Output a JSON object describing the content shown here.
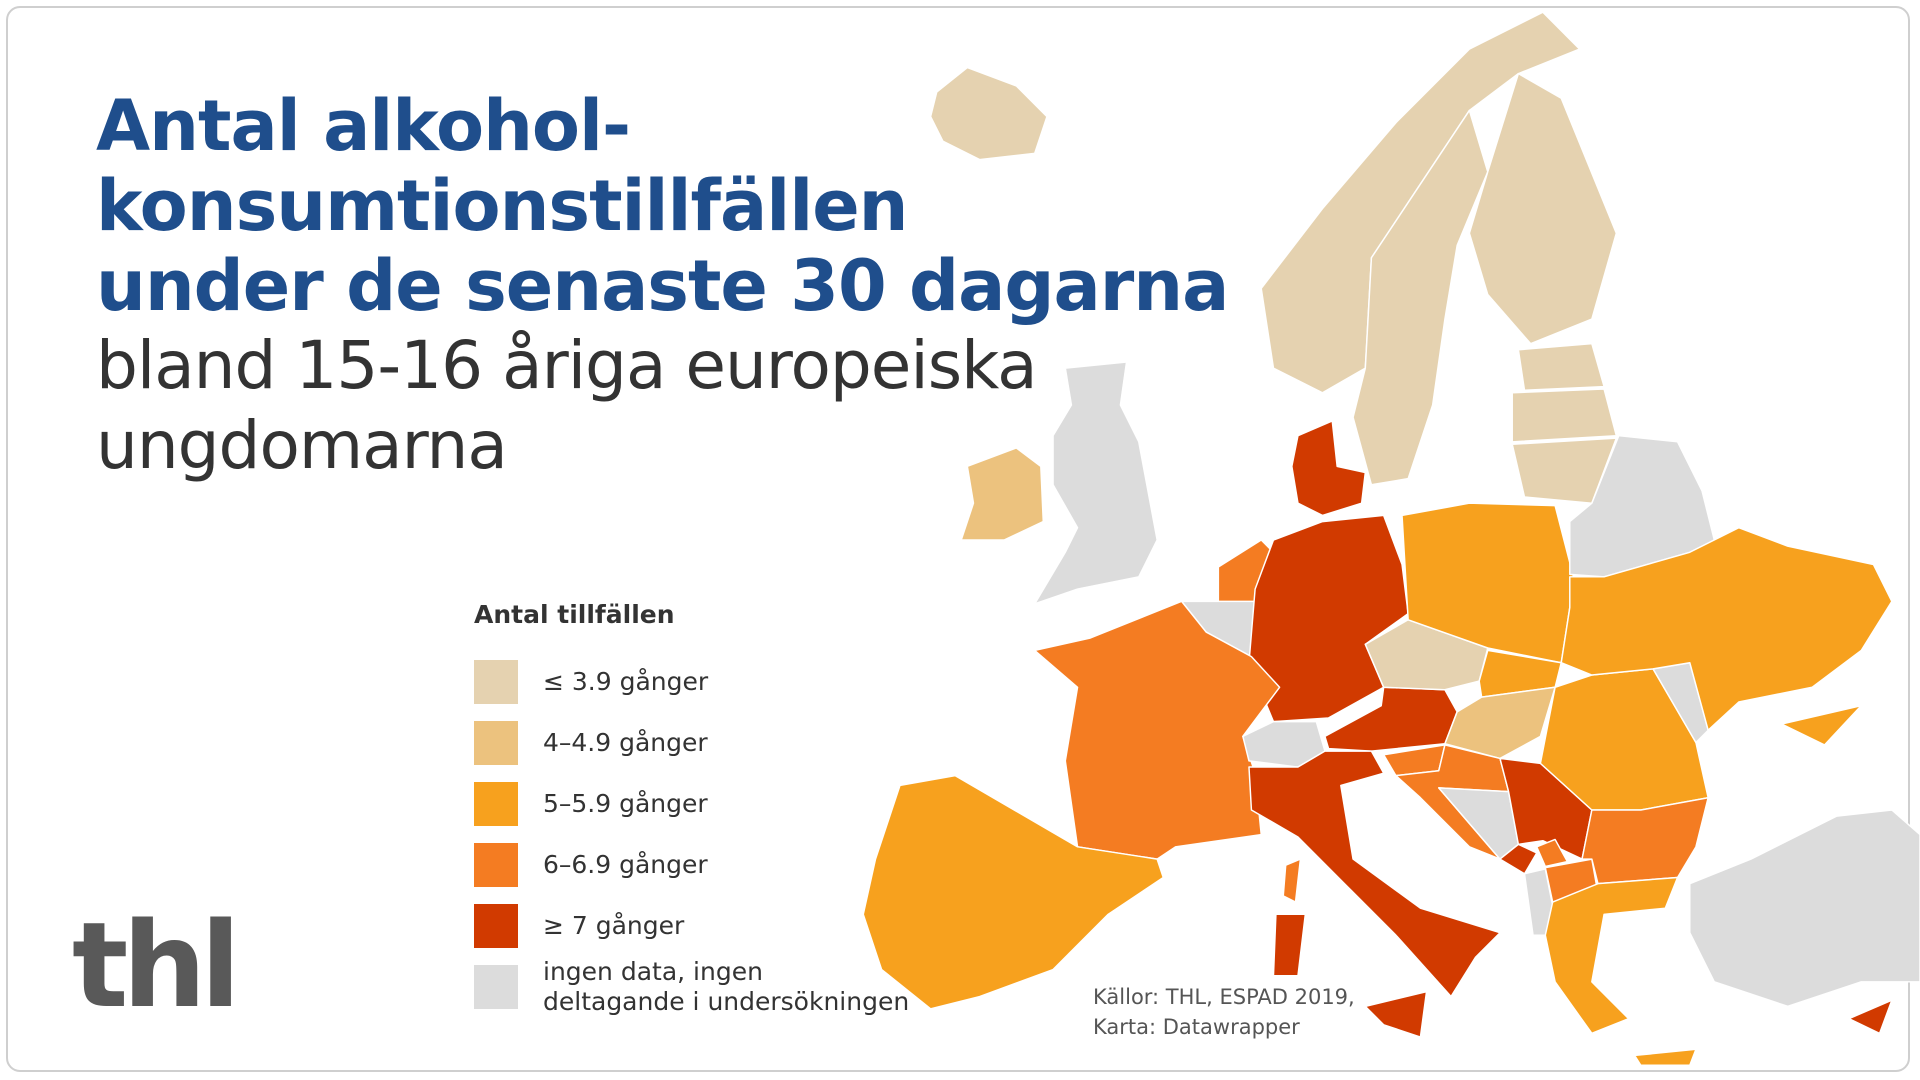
{
  "title": {
    "line1": "Antal alkohol-",
    "line2": "konsumtionstillfällen",
    "line3": "under de senaste 30 dagarna"
  },
  "subtitle": {
    "line1": "bland 15-16 åriga europeiska",
    "line2": "ungdomarna"
  },
  "legend": {
    "title": "Antal tillfällen",
    "items": [
      {
        "label": "≤ 3.9 gånger",
        "color": "#e5d2b0"
      },
      {
        "label": "4–4.9 gånger",
        "color": "#ecc27e"
      },
      {
        "label": "5–5.9 gånger",
        "color": "#f7a11e"
      },
      {
        "label": "6–6.9 gånger",
        "color": "#f47c22"
      },
      {
        "label": "≥ 7 gånger",
        "color": "#d13a00"
      },
      {
        "label_line1": "ingen data, ingen",
        "label_line2": "deltagande i undersökningen",
        "color": "#dcdcdc"
      }
    ]
  },
  "map_data": {
    "type": "choropleth",
    "categories": [
      "≤ 3.9",
      "4–4.9",
      "5–5.9",
      "6–6.9",
      "≥ 7",
      "no data"
    ],
    "countries": {
      "Iceland": 0,
      "Norway": 0,
      "Sweden": 0,
      "Finland": 0,
      "Estonia": 0,
      "Latvia": 0,
      "Lithuania": 0,
      "Czechia": 0,
      "Ireland": 1,
      "Hungary": 1,
      "Spain": 2,
      "Poland": 2,
      "Slovakia": 2,
      "Romania": 2,
      "Ukraine": 2,
      "Greece": 2,
      "France": 3,
      "Netherlands": 3,
      "Croatia": 3,
      "Slovenia": 3,
      "Bulgaria": 3,
      "North Macedonia": 3,
      "Kosovo": 3,
      "Denmark": 4,
      "Germany": 4,
      "Italy": 4,
      "Austria": 4,
      "Serbia": 4,
      "Montenegro": 4,
      "Cyprus": 4,
      "United Kingdom": 5,
      "Belgium": 5,
      "Switzerland": 5,
      "Bosnia and Herzegovina": 5,
      "Albania": 5,
      "Belarus": 5,
      "Moldova": 5,
      "Turkey": 5
    }
  },
  "sources": {
    "line1": "Källor: THL, ESPAD 2019,",
    "line2": "Karta: Datawrapper"
  },
  "logo": {
    "text": "thl"
  }
}
